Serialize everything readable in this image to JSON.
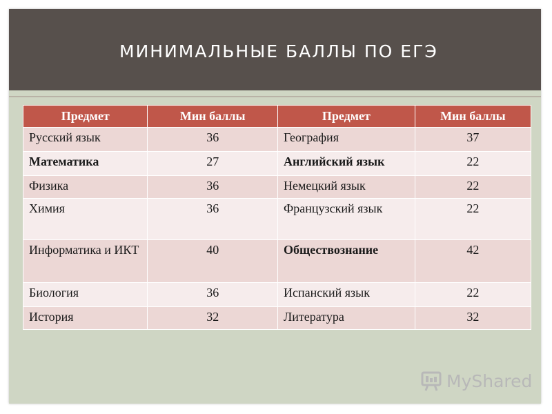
{
  "title": "МИНИМАЛЬНЫЕ БАЛЛЫ ПО ЕГЭ",
  "table": {
    "headers": [
      "Предмет",
      "Мин баллы",
      "Предмет",
      "Мин баллы"
    ],
    "rows": [
      {
        "subject1": "Русский язык",
        "score1": "36",
        "subject2": "География",
        "score2": "37",
        "bold1": false,
        "bold2": false
      },
      {
        "subject1": "Математика",
        "score1": "27",
        "subject2": "Английский язык",
        "score2": "22",
        "bold1": true,
        "bold2": true
      },
      {
        "subject1": "Физика",
        "score1": "36",
        "subject2": "Немецкий язык",
        "score2": "22",
        "bold1": false,
        "bold2": false
      },
      {
        "subject1": "Химия",
        "score1": "36",
        "subject2": "Французский язык",
        "score2": "22",
        "bold1": false,
        "bold2": false
      },
      {
        "subject1": "Информатика и ИКТ",
        "score1": "40",
        "subject2": "Обществознание",
        "score2": "42",
        "bold1": false,
        "bold2": true
      },
      {
        "subject1": "Биология",
        "score1": "36",
        "subject2": "Испанский язык",
        "score2": "22",
        "bold1": false,
        "bold2": false
      },
      {
        "subject1": "История",
        "score1": "32",
        "subject2": "Литература",
        "score2": "32",
        "bold1": false,
        "bold2": false
      }
    ]
  },
  "watermark": {
    "text": "MyShared",
    "icon": "myshared-logo-icon"
  },
  "colors": {
    "title_bar": "#57504c",
    "slide_bg": "#cfd6c4",
    "header_bg": "#c0574a",
    "row_odd": "#ecd7d5",
    "row_even": "#f6ecec"
  }
}
